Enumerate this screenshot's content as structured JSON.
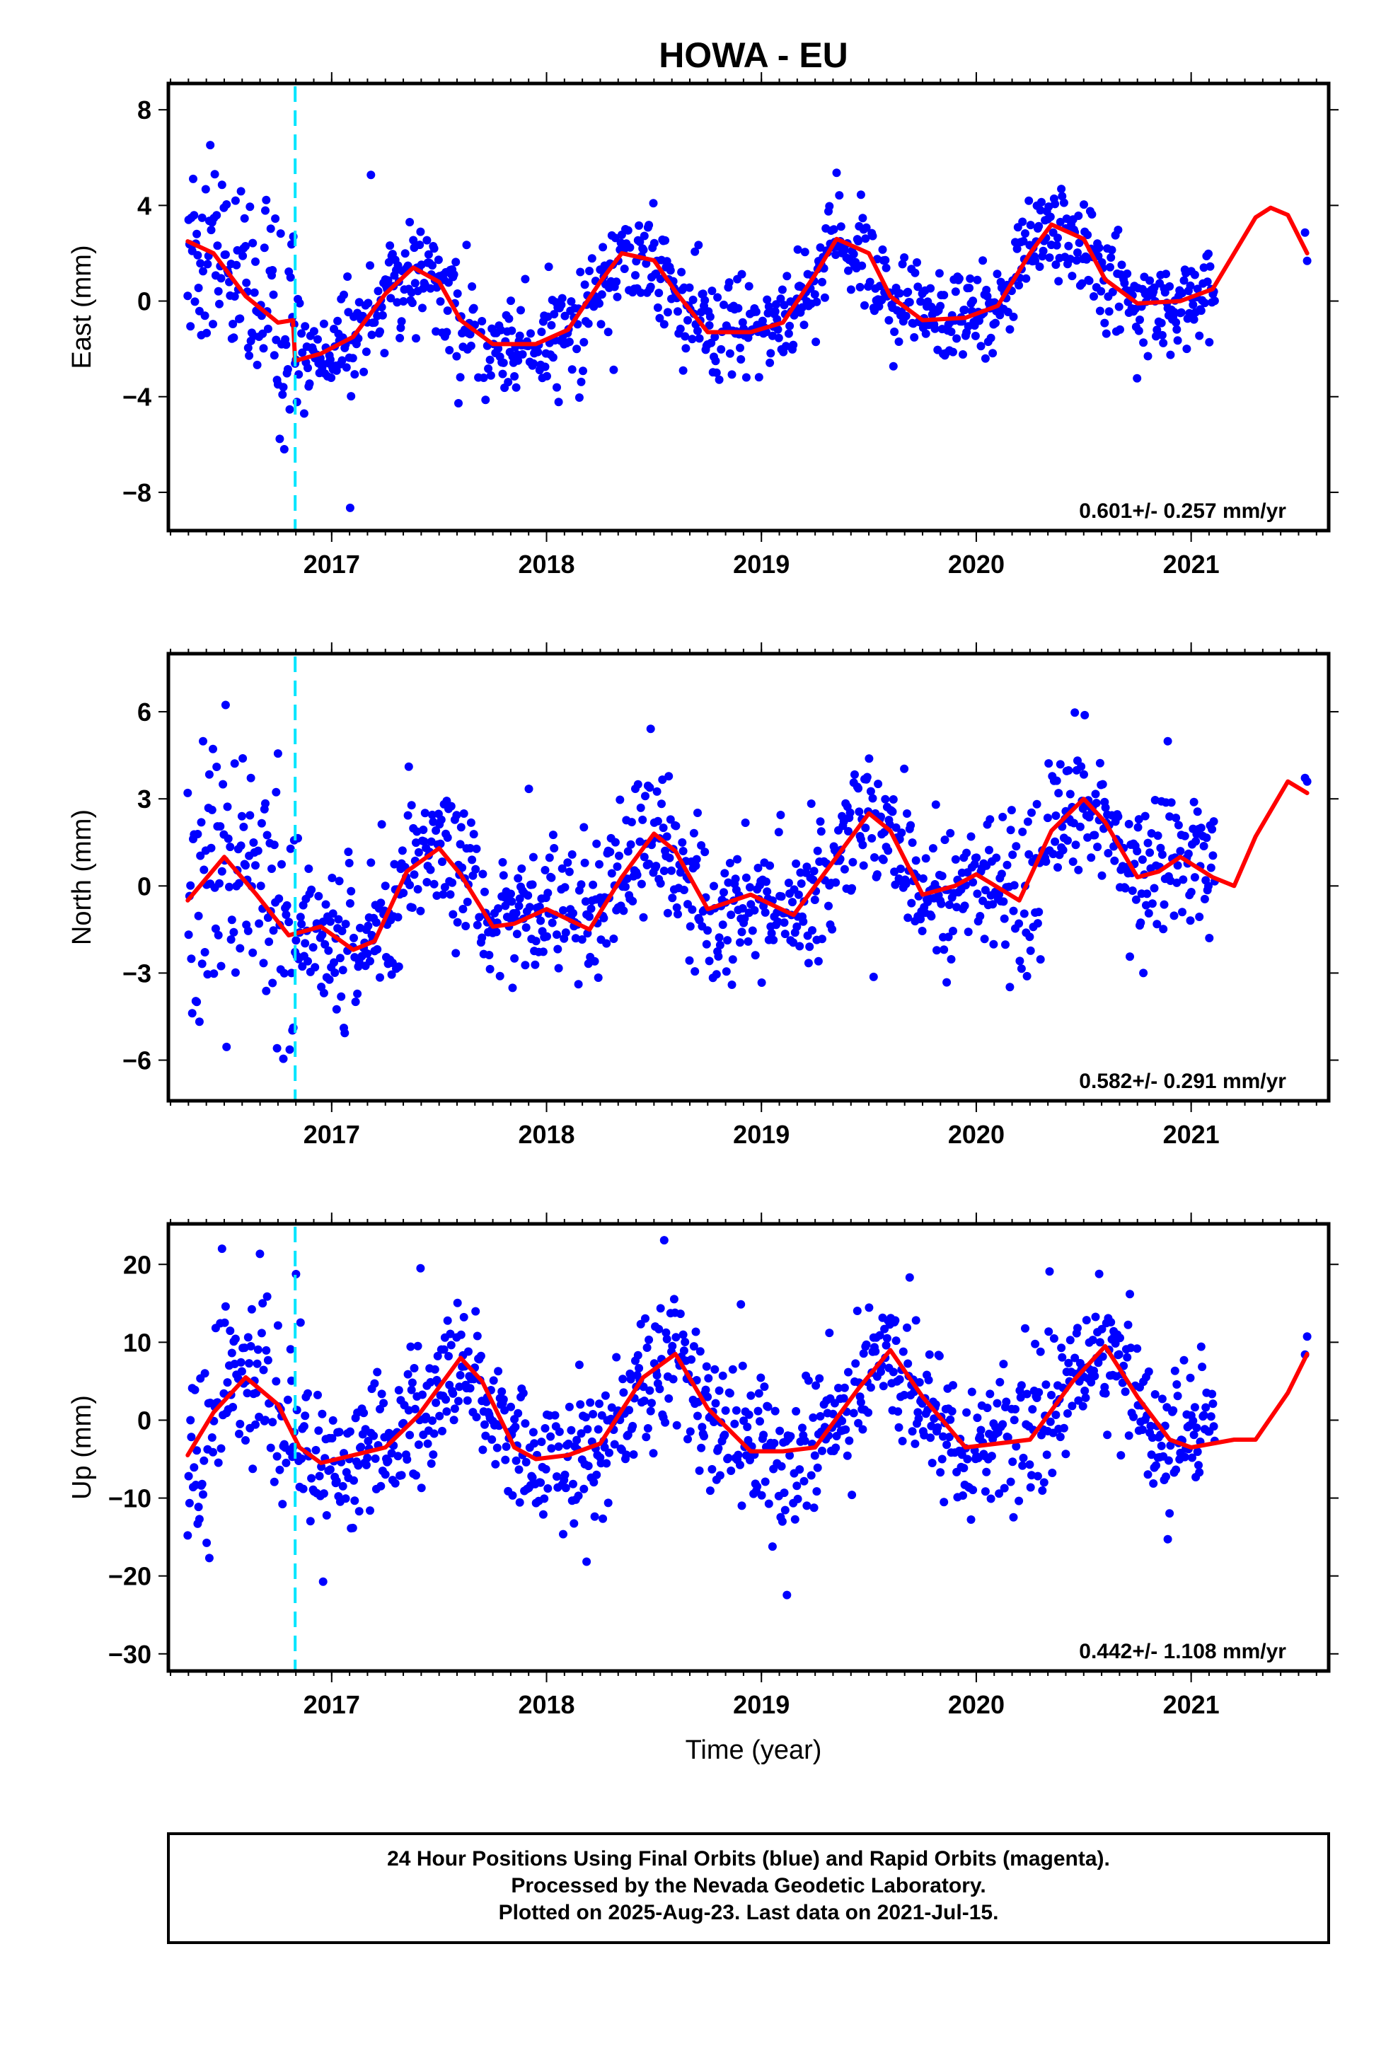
{
  "title": "HOWA - EU",
  "xlabel": "Time (year)",
  "colors": {
    "points": "#0000ff",
    "fit": "#ff0000",
    "marker": "#00e5ff",
    "frame": "#000000"
  },
  "footer": {
    "line1": "24 Hour Positions Using Final Orbits (blue) and Rapid Orbits (magenta).",
    "line2": "Processed by the Nevada Geodetic Laboratory.",
    "line3": "Plotted on 2025-Aug-23. Last data on 2021-Jul-15."
  },
  "chart_data": [
    {
      "type": "scatter",
      "ylabel": "East (mm)",
      "rate": "0.601+/- 0.257 mm/yr",
      "xlim": [
        2016.24,
        2021.64
      ],
      "ylim": [
        -9.6,
        9.1
      ],
      "yticks": [
        8,
        4,
        0,
        -4,
        -8
      ],
      "ytick_labels": [
        "8",
        "4",
        "0",
        "−4",
        "−8"
      ],
      "xticks": [
        2017,
        2018,
        2019,
        2020,
        2021
      ],
      "xtick_labels": [
        "2017",
        "2018",
        "2019",
        "2020",
        "2021"
      ],
      "marker_year": 2016.83,
      "data_range": [
        2016.33,
        2021.11
      ],
      "last_points": [
        2021.53,
        2021.54
      ],
      "series": [
        {
          "kind": "points",
          "noise": 1.0,
          "early_noise": 2.2
        },
        {
          "kind": "fit",
          "x": [
            2016.33,
            2016.45,
            2016.6,
            2016.75,
            2016.82,
            2016.83,
            2016.95,
            2017.1,
            2017.25,
            2017.38,
            2017.5,
            2017.6,
            2017.75,
            2017.95,
            2018.1,
            2018.25,
            2018.35,
            2018.5,
            2018.6,
            2018.75,
            2018.95,
            2019.1,
            2019.25,
            2019.35,
            2019.5,
            2019.6,
            2019.75,
            2019.95,
            2020.1,
            2020.25,
            2020.35,
            2020.5,
            2020.6,
            2020.75,
            2020.95,
            2021.1,
            2021.2,
            2021.3,
            2021.37,
            2021.45,
            2021.54
          ],
          "y": [
            2.5,
            2.0,
            0.2,
            -0.9,
            -0.8,
            -2.5,
            -2.2,
            -1.5,
            0.3,
            1.4,
            0.8,
            -0.8,
            -1.8,
            -1.8,
            -1.2,
            0.8,
            2.0,
            1.7,
            0.4,
            -1.3,
            -1.3,
            -0.9,
            1.1,
            2.6,
            2.0,
            0.2,
            -0.8,
            -0.7,
            -0.2,
            2.0,
            3.2,
            2.6,
            0.9,
            -0.1,
            0.0,
            0.5,
            2.0,
            3.5,
            3.9,
            3.6,
            2.0
          ]
        }
      ]
    },
    {
      "type": "scatter",
      "ylabel": "North (mm)",
      "rate": "0.582+/- 0.291 mm/yr",
      "xlim": [
        2016.24,
        2021.64
      ],
      "ylim": [
        -7.4,
        8.0
      ],
      "yticks": [
        6,
        3,
        0,
        -3,
        -6
      ],
      "ytick_labels": [
        "6",
        "3",
        "0",
        "−3",
        "−6"
      ],
      "xticks": [
        2017,
        2018,
        2019,
        2020,
        2021
      ],
      "xtick_labels": [
        "2017",
        "2018",
        "2019",
        "2020",
        "2021"
      ],
      "marker_year": 2016.83,
      "data_range": [
        2016.33,
        2021.11
      ],
      "last_points": [
        2021.53,
        2021.54
      ],
      "series": [
        {
          "kind": "points",
          "noise": 1.2,
          "early_noise": 2.2
        },
        {
          "kind": "fit",
          "x": [
            2016.33,
            2016.5,
            2016.65,
            2016.8,
            2016.95,
            2017.1,
            2017.2,
            2017.35,
            2017.5,
            2017.6,
            2017.75,
            2017.85,
            2018.0,
            2018.2,
            2018.35,
            2018.5,
            2018.6,
            2018.75,
            2018.95,
            2019.15,
            2019.3,
            2019.5,
            2019.6,
            2019.75,
            2019.9,
            2020.0,
            2020.2,
            2020.35,
            2020.5,
            2020.6,
            2020.75,
            2020.85,
            2020.95,
            2021.1,
            2021.2,
            2021.3,
            2021.45,
            2021.54
          ],
          "y": [
            -0.5,
            1.0,
            -0.3,
            -1.7,
            -1.4,
            -2.2,
            -1.9,
            0.5,
            1.3,
            0.4,
            -1.4,
            -1.3,
            -0.8,
            -1.5,
            0.3,
            1.8,
            1.2,
            -0.8,
            -0.3,
            -1.0,
            0.5,
            2.5,
            1.9,
            -0.3,
            0.0,
            0.4,
            -0.5,
            1.9,
            3.0,
            2.2,
            0.3,
            0.5,
            1.0,
            0.3,
            0.0,
            1.7,
            3.6,
            3.2
          ]
        }
      ]
    },
    {
      "type": "scatter",
      "ylabel": "Up (mm)",
      "rate": "0.442+/- 1.108 mm/yr",
      "xlim": [
        2016.24,
        2021.64
      ],
      "ylim": [
        -32.2,
        25.2
      ],
      "yticks": [
        20,
        10,
        0,
        -10,
        -20,
        -30
      ],
      "ytick_labels": [
        "20",
        "10",
        "0",
        "−10",
        "−20",
        "−30"
      ],
      "xticks": [
        2017,
        2018,
        2019,
        2020,
        2021
      ],
      "xtick_labels": [
        "2017",
        "2018",
        "2019",
        "2020",
        "2021"
      ],
      "marker_year": 2016.83,
      "data_range": [
        2016.33,
        2021.11
      ],
      "last_points": [
        2021.53,
        2021.54
      ],
      "series": [
        {
          "kind": "points",
          "noise": 4.5,
          "early_noise": 6.0
        },
        {
          "kind": "fit",
          "x": [
            2016.33,
            2016.45,
            2016.6,
            2016.75,
            2016.85,
            2016.95,
            2017.1,
            2017.25,
            2017.4,
            2017.6,
            2017.7,
            2017.85,
            2017.95,
            2018.1,
            2018.25,
            2018.45,
            2018.6,
            2018.75,
            2018.95,
            2019.1,
            2019.25,
            2019.45,
            2019.6,
            2019.75,
            2019.95,
            2020.1,
            2020.25,
            2020.45,
            2020.6,
            2020.75,
            2020.9,
            2021.0,
            2021.2,
            2021.3,
            2021.45,
            2021.54
          ],
          "y": [
            -4.5,
            1.0,
            5.5,
            2.0,
            -3.5,
            -5.5,
            -4.5,
            -3.5,
            0.5,
            8.0,
            5.0,
            -3.5,
            -5.0,
            -4.5,
            -3.0,
            5.5,
            8.5,
            1.5,
            -4.0,
            -4.0,
            -3.5,
            4.0,
            9.0,
            3.0,
            -3.5,
            -3.0,
            -2.5,
            5.0,
            9.5,
            3.0,
            -2.5,
            -3.5,
            -2.5,
            -2.5,
            3.5,
            8.5
          ]
        }
      ]
    }
  ]
}
